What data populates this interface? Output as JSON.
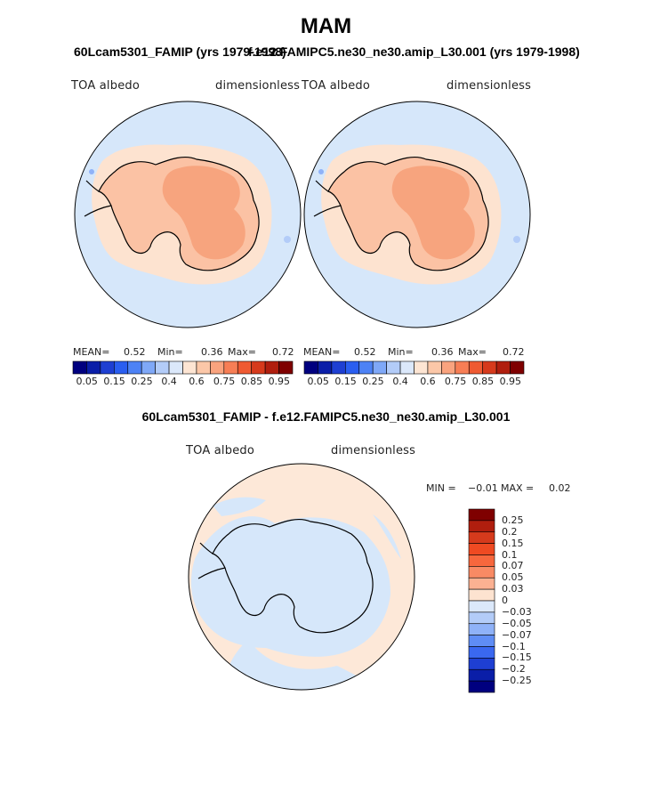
{
  "title": "MAM",
  "panel_left": {
    "title": "60Lcam5301_FAMIP (yrs 1979-1998)",
    "var_label": "TOA albedo",
    "units": "dimensionless",
    "mean_label": "MEAN=",
    "mean": "0.52",
    "min_label": "Min=",
    "min": "0.36",
    "max_label": "Max=",
    "max": "0.72"
  },
  "panel_right": {
    "title": "f.e12.FAMIPC5.ne30_ne30.amip_L30.001 (yrs 1979-1998)",
    "var_label": "TOA albedo",
    "units": "dimensionless",
    "mean_label": "MEAN=",
    "mean": "0.52",
    "min_label": "Min=",
    "min": "0.36",
    "max_label": "Max=",
    "max": "0.72"
  },
  "colorbar_top": {
    "ticks": [
      "0.05",
      "0.15",
      "0.25",
      "0.4",
      "0.6",
      "0.75",
      "0.85",
      "0.95"
    ],
    "colors": [
      "#00007f",
      "#0a1ea8",
      "#1e3fd2",
      "#2a5ef0",
      "#4d82f5",
      "#7fa8f7",
      "#b3ccf8",
      "#dbe8fa",
      "#fde5d3",
      "#fbc7a8",
      "#f9a37e",
      "#f77e55",
      "#ef5a32",
      "#d63a1c",
      "#b01e0e",
      "#7f0000"
    ]
  },
  "panel_diff": {
    "title": "60Lcam5301_FAMIP - f.e12.FAMIPC5.ne30_ne30.amip_L30.001",
    "var_label": "TOA albedo",
    "units": "dimensionless",
    "min_label": "MIN =",
    "min": "−0.01",
    "max_label": "MAX =",
    "max": "0.02"
  },
  "colorbar_diff": {
    "ticks": [
      "0.25",
      "0.2",
      "0.15",
      "0.1",
      "0.07",
      "0.05",
      "0.03",
      "0",
      "−0.03",
      "−0.05",
      "−0.07",
      "−0.1",
      "−0.15",
      "−0.2",
      "−0.25"
    ],
    "colors": [
      "#7f0000",
      "#b01e0e",
      "#d63a1c",
      "#ef4a22",
      "#f7673d",
      "#f98a64",
      "#fbb192",
      "#fde3d0",
      "#dbe8fa",
      "#b3ccf8",
      "#8fb2f8",
      "#5f8df5",
      "#3a68f0",
      "#1e3fd2",
      "#0a1ea8",
      "#00007f"
    ]
  },
  "colors": {
    "ocean_light_blue": "#d6e7fa",
    "land_light_orange": "#fbc2a4",
    "land_mid_orange": "#f7a47e",
    "sea_ice_peach": "#fde3d0",
    "diff_peach": "#fde8d8",
    "coast": "#000000"
  }
}
